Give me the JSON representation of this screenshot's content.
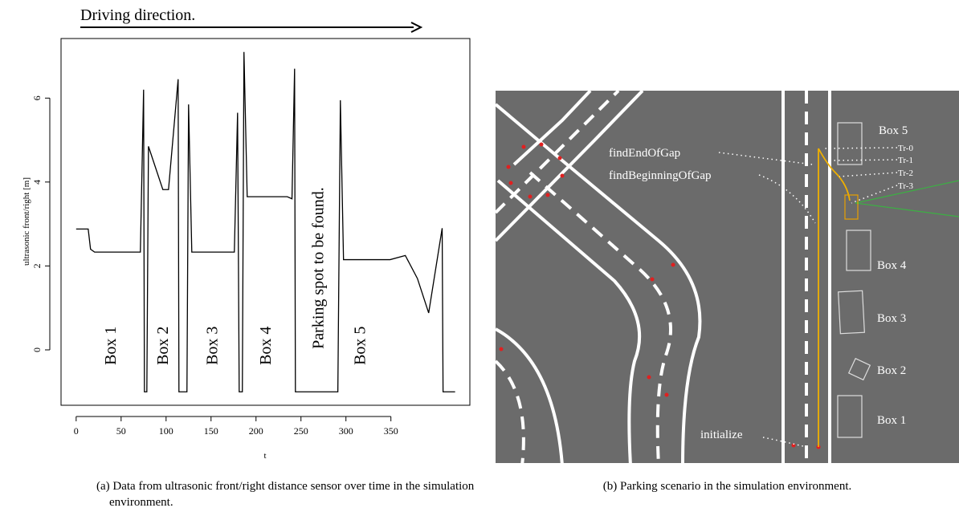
{
  "chart_data": {
    "type": "line",
    "title": "Driving direction.",
    "xlabel": "t",
    "ylabel": "ultrasonic front/right [m]",
    "x": [
      0,
      13.4,
      16,
      20.5,
      71.4,
      75,
      75.9,
      78.6,
      80.4,
      96.4,
      102.7,
      113.4,
      114.3,
      123.2,
      125,
      128.6,
      175.9,
      179.5,
      181.3,
      184.8,
      186.6,
      190.2,
      234.8,
      240,
      242.9,
      243.8,
      291,
      293.8,
      297.3,
      349.1,
      366,
      379.5,
      392,
      407,
      408,
      421.4
    ],
    "values": [
      2.88,
      2.88,
      2.4,
      2.33,
      2.33,
      6.2,
      -1,
      -1,
      4.85,
      3.82,
      3.82,
      6.45,
      -1,
      -1,
      5.85,
      2.33,
      2.33,
      5.65,
      -1,
      -1,
      7.1,
      3.65,
      3.65,
      3.6,
      6.7,
      -1,
      -1,
      5.95,
      2.15,
      2.15,
      2.25,
      1.7,
      0.88,
      2.9,
      -1,
      -1
    ],
    "color": "#000000",
    "xlim": [
      -16.8,
      437.8
    ],
    "ylim": [
      -1.32,
      7.42
    ],
    "xticks": [
      0,
      50,
      100,
      150,
      200,
      250,
      300,
      350
    ],
    "yticks": [
      0,
      2,
      4,
      6
    ],
    "annotations": [
      {
        "text": "Box 1",
        "x": 40,
        "y": 0.1
      },
      {
        "text": "Box 2",
        "x": 98,
        "y": 0.1
      },
      {
        "text": "Box 3",
        "x": 153,
        "y": 0.1
      },
      {
        "text": "Box 4",
        "x": 212,
        "y": 0.1
      },
      {
        "text": "Parking spot to be found.",
        "x": 270.5,
        "y": 1.95
      },
      {
        "text": "Box 5",
        "x": 317,
        "y": 0.1
      }
    ]
  },
  "figure_b": {
    "labels": [
      "Box 5",
      "Tr-0",
      "Tr-1",
      "Tr-2",
      "Tr-3",
      "findEndOfGap",
      "findBeginningOfGap",
      "Box 4",
      "Box 3",
      "Box 2",
      "Box 1",
      "initialize"
    ]
  },
  "captions": {
    "a": "(a) Data from ultrasonic front/right distance sensor over time in the simulation environment.",
    "b": "(b) Parking scenario in the simulation environment."
  }
}
